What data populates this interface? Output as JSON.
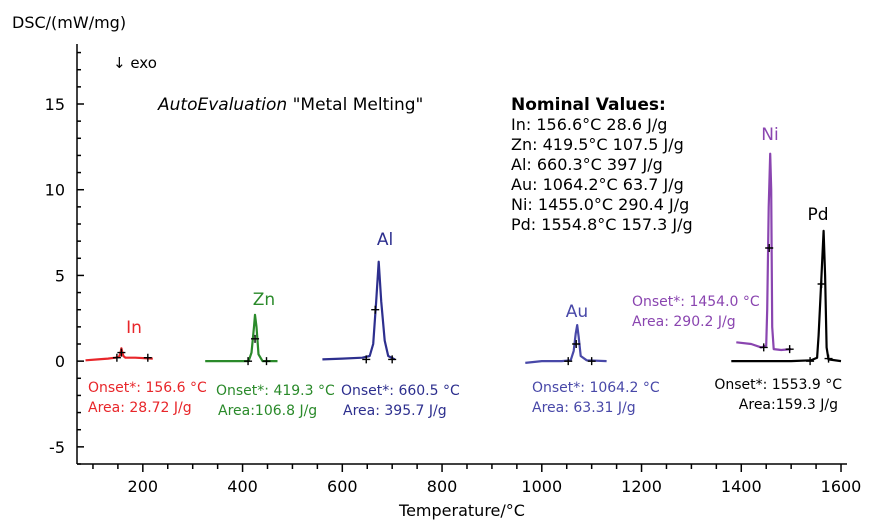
{
  "chart_data": {
    "type": "line",
    "title": "",
    "ylabel": "DSC/(mW/mg)",
    "xlabel": "Temperature/°C",
    "exo_label": "↓ exo",
    "xlim": [
      68,
      1612
    ],
    "ylim": [
      -6,
      18.5
    ],
    "x_ticks": [
      200,
      400,
      600,
      800,
      1000,
      1200,
      1400,
      1600
    ],
    "y_ticks": [
      -5,
      0,
      5,
      10,
      15
    ],
    "auto_eval": {
      "italic": "AutoEvaluation",
      "normal": " \"Metal Melting\""
    },
    "nominal_values": {
      "heading": "Nominal Values:",
      "lines": [
        "In: 156.6°C 28.6 J/g",
        "Zn: 419.5°C 107.5 J/g",
        "Al: 660.3°C  397 J/g",
        "Au: 1064.2°C 63.7 J/g",
        "Ni: 1455.0°C 290.4 J/g",
        "Pd: 1554.8°C 157.3 J/g"
      ]
    },
    "series": [
      {
        "name": "In",
        "color": "#e8262a",
        "points": [
          [
            85,
            0.05
          ],
          [
            110,
            0.1
          ],
          [
            130,
            0.15
          ],
          [
            145,
            0.2
          ],
          [
            152,
            0.25
          ],
          [
            155,
            0.45
          ],
          [
            157,
            0.75
          ],
          [
            159,
            0.5
          ],
          [
            161,
            0.3
          ],
          [
            165,
            0.2
          ],
          [
            185,
            0.2
          ],
          [
            220,
            0.15
          ]
        ],
        "markers": [
          [
            148,
            0.2
          ],
          [
            157,
            0.5
          ],
          [
            210,
            0.2
          ]
        ],
        "onset": "Onset*: 156.6 °C",
        "area": "Area: 28.72 J/g"
      },
      {
        "name": "Zn",
        "color": "#2a8a2a",
        "points": [
          [
            325,
            0
          ],
          [
            360,
            0
          ],
          [
            400,
            0
          ],
          [
            412,
            0
          ],
          [
            418,
            0.5
          ],
          [
            423,
            2.0
          ],
          [
            425,
            2.7
          ],
          [
            428,
            2.0
          ],
          [
            432,
            0.4
          ],
          [
            440,
            0
          ],
          [
            470,
            0
          ]
        ],
        "markers": [
          [
            411,
            0
          ],
          [
            425,
            1.3
          ],
          [
            448,
            0
          ]
        ],
        "onset": "Onset*: 419.3 °C",
        "area": "Area:106.8 J/g"
      },
      {
        "name": "Al",
        "color": "#2d2f8e",
        "points": [
          [
            560,
            0.1
          ],
          [
            600,
            0.15
          ],
          [
            640,
            0.2
          ],
          [
            655,
            0.3
          ],
          [
            662,
            1.0
          ],
          [
            668,
            3.5
          ],
          [
            673,
            5.8
          ],
          [
            678,
            3.5
          ],
          [
            685,
            1.2
          ],
          [
            692,
            0.3
          ],
          [
            705,
            0.1
          ]
        ],
        "markers": [
          [
            648,
            0.1
          ],
          [
            666,
            3.0
          ],
          [
            700,
            0.1
          ]
        ],
        "onset": "Onset*: 660.5 °C",
        "area": "Area: 395.7 J/g"
      },
      {
        "name": "Au",
        "color": "#4848a8",
        "points": [
          [
            967,
            -0.1
          ],
          [
            1000,
            0
          ],
          [
            1040,
            0
          ],
          [
            1058,
            0.05
          ],
          [
            1064,
            0.6
          ],
          [
            1068,
            1.6
          ],
          [
            1071,
            2.1
          ],
          [
            1074,
            1.4
          ],
          [
            1078,
            0.3
          ],
          [
            1090,
            0.05
          ],
          [
            1130,
            0
          ]
        ],
        "markers": [
          [
            1053,
            0
          ],
          [
            1069,
            1.0
          ],
          [
            1100,
            0
          ]
        ],
        "onset": "Onset*: 1064.2 °C",
        "area": "Area: 63.31 J/g"
      },
      {
        "name": "Ni",
        "color": "#8a45b0",
        "points": [
          [
            1390,
            1.1
          ],
          [
            1420,
            1.0
          ],
          [
            1440,
            0.8
          ],
          [
            1450,
            0.9
          ],
          [
            1452,
            3.0
          ],
          [
            1455,
            9.0
          ],
          [
            1458,
            12.1
          ],
          [
            1460,
            10.0
          ],
          [
            1462,
            2.0
          ],
          [
            1465,
            0.7
          ],
          [
            1480,
            0.65
          ],
          [
            1500,
            0.7
          ]
        ],
        "markers": [
          [
            1445,
            0.8
          ],
          [
            1456,
            6.6
          ],
          [
            1497,
            0.7
          ]
        ],
        "onset": "Onset*: 1454.0 °C",
        "area": "Area: 290.2 J/g"
      },
      {
        "name": "Pd",
        "color": "#000000",
        "points": [
          [
            1380,
            0
          ],
          [
            1450,
            0
          ],
          [
            1500,
            0
          ],
          [
            1540,
            0.05
          ],
          [
            1552,
            0.2
          ],
          [
            1555,
            1.5
          ],
          [
            1560,
            4.5
          ],
          [
            1565,
            7.6
          ],
          [
            1568,
            5.0
          ],
          [
            1571,
            0.8
          ],
          [
            1575,
            0.1
          ],
          [
            1600,
            0
          ]
        ],
        "markers": [
          [
            1538,
            0
          ],
          [
            1561,
            4.5
          ],
          [
            1575,
            0.15
          ]
        ],
        "onset": "Onset*: 1553.9 °C",
        "area": "Area:159.3 J/g"
      }
    ]
  }
}
